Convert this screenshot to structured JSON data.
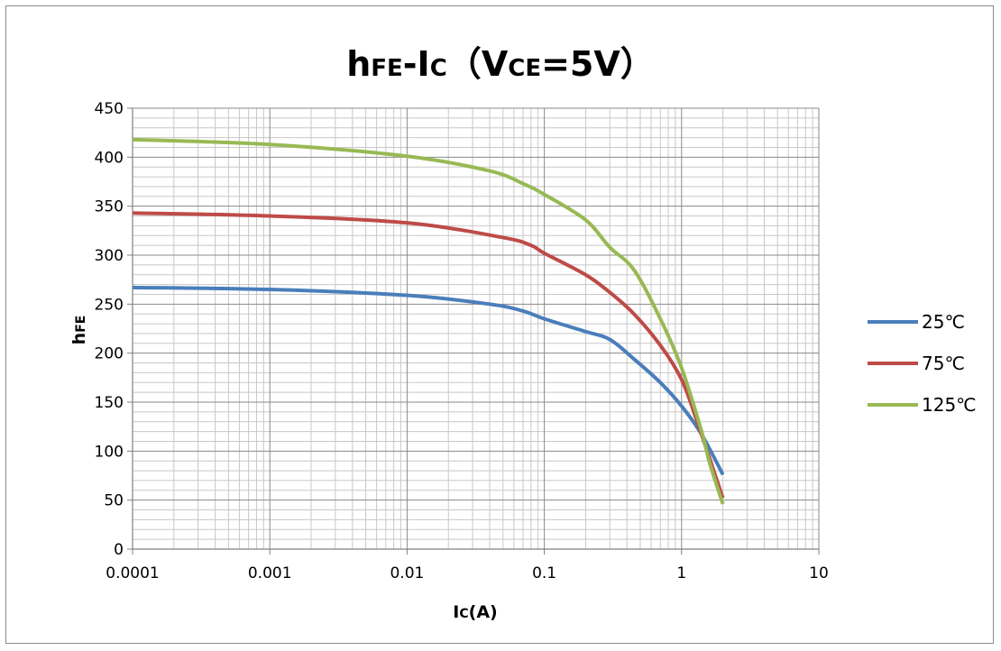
{
  "chart_data": {
    "type": "line",
    "title": {
      "main1": "h",
      "sub1": "FE",
      "main2": "-I",
      "sub2": "C",
      "open": "（",
      "main3": "V",
      "sub3": "CE",
      "main4": "=5V",
      "close": "）"
    },
    "xlabel": {
      "main": "I",
      "sub": "C",
      "rest": "(A)"
    },
    "ylabel": {
      "main": "h",
      "sub": "FE"
    },
    "x_scale": "log",
    "xlim": [
      0.0001,
      10
    ],
    "ylim": [
      0,
      450
    ],
    "x_tick_labels": [
      "0.0001",
      "0.001",
      "0.01",
      "0.1",
      "1",
      "10"
    ],
    "y_tick_labels": [
      "0",
      "50",
      "100",
      "150",
      "200",
      "250",
      "300",
      "350",
      "400",
      "450"
    ],
    "y_ticks": [
      0,
      50,
      100,
      150,
      200,
      250,
      300,
      350,
      400,
      450
    ],
    "x_ticks": [
      0.0001,
      0.001,
      0.01,
      0.1,
      1,
      10
    ],
    "grid": true,
    "legend_position": "right",
    "series": [
      {
        "name": "25℃",
        "color": "#4a7ebb",
        "x": [
          0.0001,
          0.001,
          0.01,
          0.04,
          0.07,
          0.1,
          0.2,
          0.3,
          0.45,
          0.7,
          1.0,
          1.4,
          2.0
        ],
        "y": [
          267,
          265,
          259,
          250,
          243,
          235,
          222,
          214,
          194,
          170,
          146,
          117,
          76
        ]
      },
      {
        "name": "75℃",
        "color": "#be4b48",
        "x": [
          0.0001,
          0.001,
          0.01,
          0.05,
          0.08,
          0.1,
          0.2,
          0.3,
          0.45,
          0.7,
          1.0,
          1.3,
          2.0
        ],
        "y": [
          343,
          340,
          333,
          318,
          310,
          302,
          280,
          262,
          240,
          208,
          173,
          130,
          52
        ]
      },
      {
        "name": "125℃",
        "color": "#98b954",
        "x": [
          0.0001,
          0.001,
          0.01,
          0.04,
          0.07,
          0.1,
          0.2,
          0.3,
          0.45,
          0.7,
          1.0,
          1.4,
          1.6,
          2.0
        ],
        "y": [
          418,
          413,
          401,
          386,
          373,
          362,
          336,
          308,
          285,
          235,
          185,
          120,
          88,
          46
        ]
      }
    ]
  }
}
